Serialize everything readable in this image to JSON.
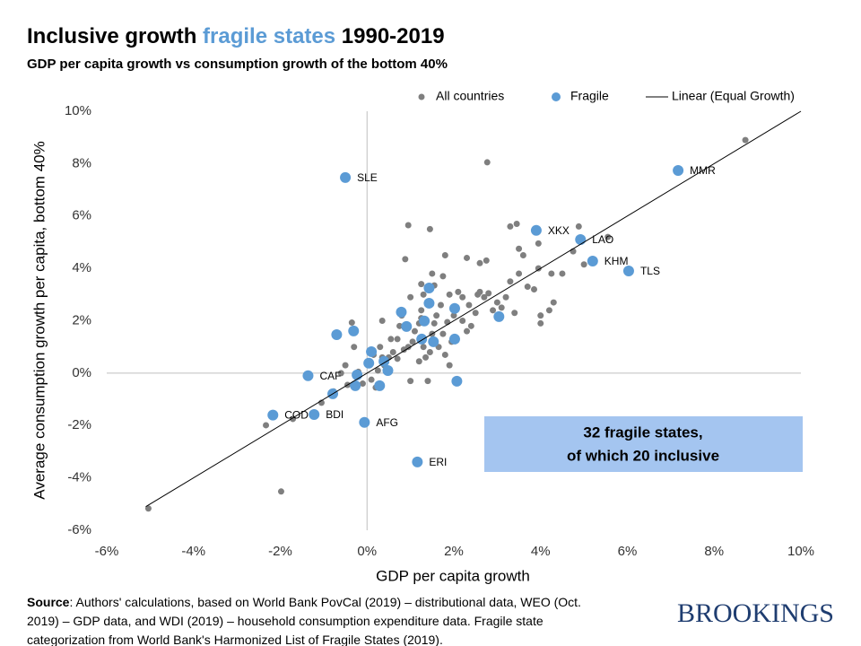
{
  "chart_data": {
    "type": "scatter",
    "title": [
      "Inclusive growth ",
      "fragile states",
      " 1990-2019"
    ],
    "title_highlight_color": "#5b9bd5",
    "subtitle": "GDP per capita growth vs consumption growth of the bottom 40%",
    "xlabel": "GDP per capita growth",
    "ylabel": "Average consumption growth per capita, bottom 40%",
    "xlim": [
      -6,
      10
    ],
    "ylim": [
      -6,
      10
    ],
    "xticks": [
      {
        "value": -6,
        "label": "-6%"
      },
      {
        "value": -4,
        "label": "-4%"
      },
      {
        "value": -2,
        "label": "-2%"
      },
      {
        "value": 0,
        "label": "0%"
      },
      {
        "value": 2,
        "label": "2%"
      },
      {
        "value": 4,
        "label": "4%"
      },
      {
        "value": 6,
        "label": "6%"
      },
      {
        "value": 8,
        "label": "8%"
      },
      {
        "value": 10,
        "label": "10%"
      }
    ],
    "yticks": [
      {
        "value": -6,
        "label": "-6%"
      },
      {
        "value": -4,
        "label": "-4%"
      },
      {
        "value": -2,
        "label": "-2%"
      },
      {
        "value": 0,
        "label": "0%"
      },
      {
        "value": 2,
        "label": "2%"
      },
      {
        "value": 4,
        "label": "4%"
      },
      {
        "value": 6,
        "label": "6%"
      },
      {
        "value": 8,
        "label": "8%"
      },
      {
        "value": 10,
        "label": "10%"
      }
    ],
    "series": [
      {
        "name": "All countries",
        "color": "#7f7f7f",
        "x": [
          8.72,
          2.77,
          -5.04,
          -1.98,
          -2.33,
          -1.71,
          -1.05,
          -0.77,
          -0.6,
          -0.45,
          -0.2,
          0.1,
          0.25,
          0.4,
          0.5,
          0.6,
          0.7,
          0.85,
          0.95,
          1.0,
          1.05,
          1.1,
          1.2,
          1.25,
          1.3,
          1.35,
          1.4,
          1.45,
          1.5,
          1.55,
          1.6,
          1.65,
          1.7,
          1.75,
          1.8,
          1.85,
          1.9,
          1.95,
          2.0,
          2.1,
          2.2,
          2.3,
          2.35,
          2.4,
          2.5,
          2.55,
          2.6,
          2.7,
          2.8,
          2.9,
          3.0,
          3.1,
          3.2,
          3.3,
          3.4,
          3.5,
          3.6,
          3.7,
          3.85,
          3.95,
          4.0,
          4.0,
          4.2,
          4.25,
          4.3,
          4.5,
          4.75,
          4.88,
          5.0,
          5.55,
          3.45,
          3.3,
          3.95,
          3.5,
          2.75,
          2.3,
          1.8,
          1.45,
          0.95,
          0.88,
          1.25,
          1.5,
          1.55,
          1.75,
          1.0,
          0.8,
          0.75,
          0.55,
          0.3,
          0.15,
          0.2,
          -0.1,
          -0.3,
          -0.5,
          1.2,
          1.9,
          0.7,
          1.3,
          2.6,
          -0.35,
          0.35,
          1.25,
          2.2,
          0.35
        ],
        "values": [
          8.9,
          8.05,
          -5.17,
          -4.52,
          -1.99,
          -1.75,
          -1.13,
          -0.7,
          0.0,
          -0.45,
          0.05,
          -0.25,
          0.1,
          0.3,
          0.6,
          0.8,
          0.55,
          0.9,
          1.0,
          -0.3,
          1.2,
          1.6,
          1.9,
          2.4,
          1.0,
          0.6,
          -0.3,
          0.8,
          1.5,
          1.9,
          2.2,
          1.0,
          2.6,
          1.5,
          0.7,
          1.95,
          3.0,
          1.2,
          2.2,
          3.1,
          2.0,
          1.6,
          2.6,
          1.8,
          2.3,
          3.0,
          3.1,
          2.9,
          3.05,
          2.4,
          2.7,
          2.5,
          2.9,
          3.5,
          2.3,
          3.8,
          4.5,
          3.3,
          3.2,
          4.0,
          2.2,
          1.9,
          2.4,
          3.8,
          2.7,
          3.8,
          4.65,
          5.6,
          4.15,
          5.2,
          5.7,
          5.6,
          4.95,
          4.75,
          4.3,
          4.4,
          4.5,
          5.5,
          5.65,
          4.35,
          3.4,
          3.8,
          3.35,
          3.7,
          2.9,
          2.2,
          1.8,
          1.3,
          1.0,
          0.7,
          -0.55,
          -0.4,
          1.0,
          0.3,
          0.45,
          0.3,
          1.3,
          3.0,
          4.2,
          1.93,
          2.0,
          2.1,
          2.9,
          0.6
        ]
      },
      {
        "name": "Fragile",
        "color": "#5b9bd5",
        "x": [
          -0.5,
          7.17,
          3.9,
          4.92,
          5.2,
          6.03,
          -1.36,
          -2.17,
          -1.22,
          -0.06,
          1.16,
          1.43,
          1.43,
          0.79,
          2.02,
          3.04,
          1.32,
          0.91,
          -0.31,
          -0.7,
          0.1,
          1.26,
          1.53,
          2.02,
          0.04,
          0.48,
          0.39,
          -0.23,
          0.29,
          -0.27,
          -0.79,
          2.07
        ],
        "values": [
          7.47,
          7.74,
          5.45,
          5.1,
          4.28,
          3.9,
          -0.1,
          -1.6,
          -1.58,
          -1.88,
          -3.39,
          3.25,
          2.67,
          2.33,
          2.47,
          2.16,
          1.99,
          1.78,
          1.61,
          1.47,
          0.82,
          1.3,
          1.2,
          1.3,
          0.38,
          0.1,
          0.45,
          -0.07,
          -0.48,
          -0.48,
          -0.79,
          -0.31
        ],
        "labels": [
          "SLE",
          "MMR",
          "XKX",
          "LAO",
          "KHM",
          "TLS",
          "CAF",
          "COD",
          "BDI",
          "AFG",
          "ERI",
          null,
          null,
          null,
          null,
          null,
          null,
          null,
          null,
          null,
          null,
          null,
          null,
          null,
          null,
          null,
          null,
          null,
          null,
          null,
          null,
          null
        ]
      },
      {
        "name": "Linear (Equal Growth)",
        "color": "#000000",
        "line": true,
        "x": [
          -5.1,
          10
        ],
        "values": [
          -5.1,
          10
        ]
      }
    ],
    "annotation": [
      "32 fragile states,",
      "of which 20 inclusive"
    ],
    "annotation_color": "#a4c5f0",
    "source_label": "Source",
    "source": [
      ": Authors' calculations, based on World Bank PovCal (2019) – distributional data, WEO (Oct.",
      "2019) – GDP data, and WDI (2019) – household consumption expenditure data. Fragile state",
      "categorization from World Bank's Harmonized List of Fragile States (2019)."
    ],
    "logo": "BROOKINGS"
  }
}
